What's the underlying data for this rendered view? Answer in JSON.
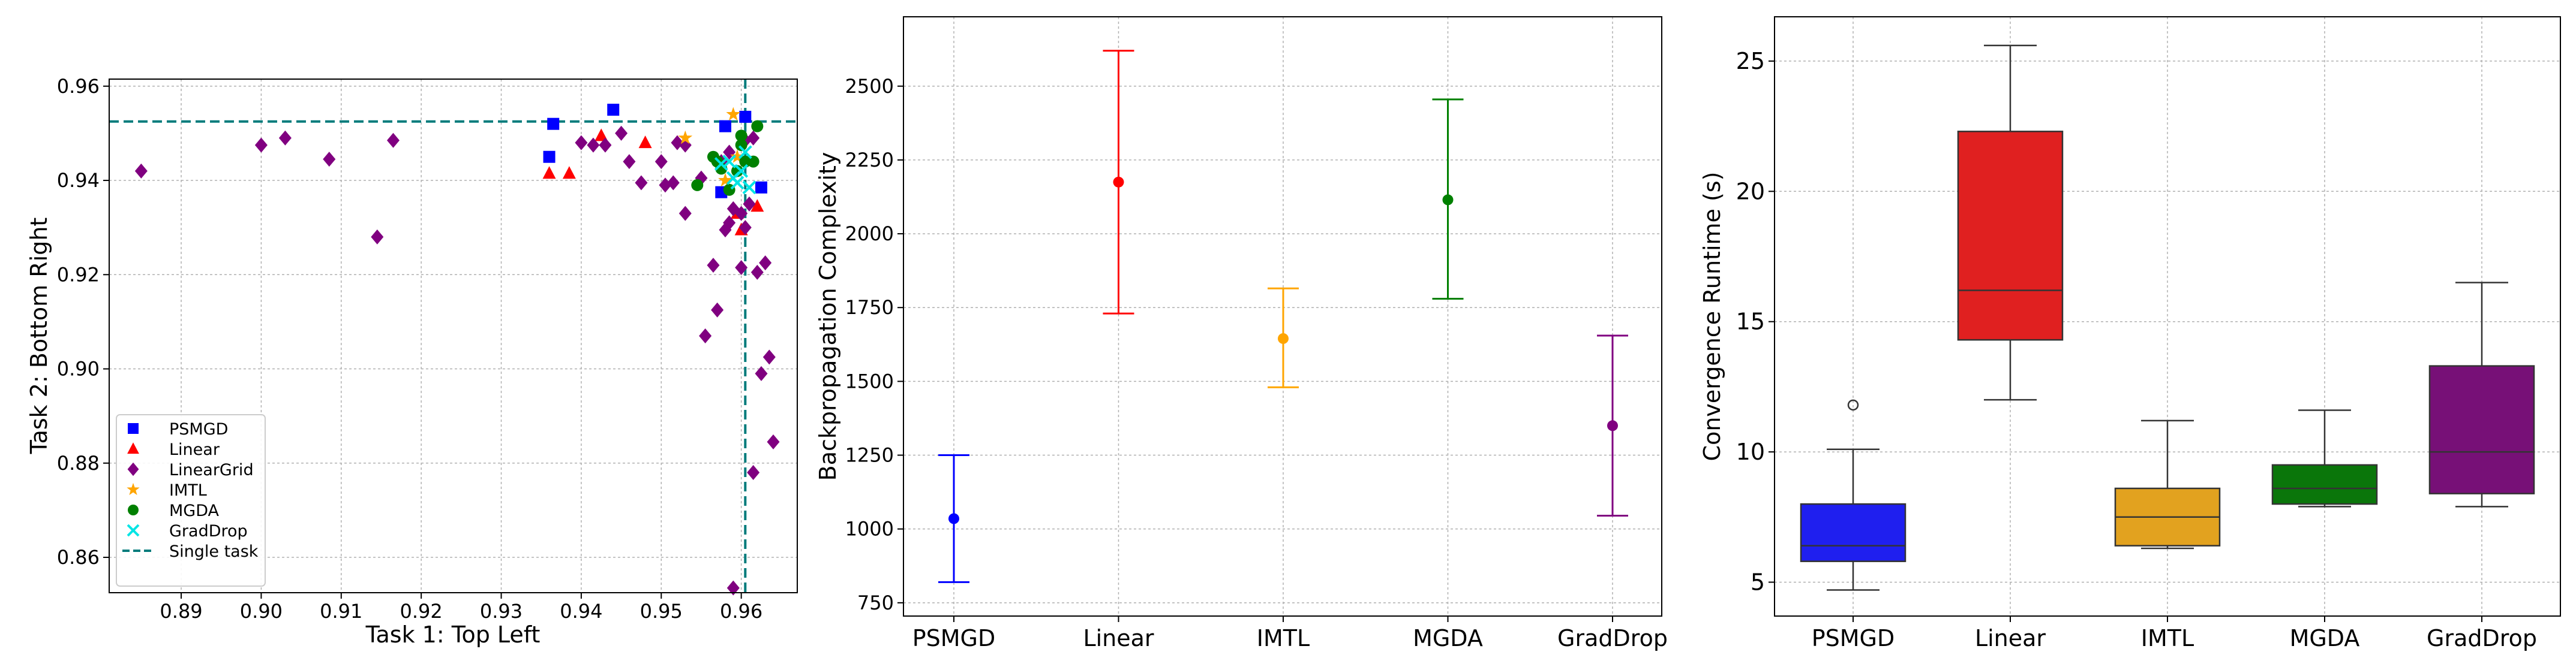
{
  "chart_data": [
    {
      "type": "scatter",
      "title": "",
      "xlabel": "Task 1: Top Left",
      "ylabel": "Task 2: Bottom Right",
      "xlim": [
        0.881,
        0.967
      ],
      "ylim": [
        0.8525,
        0.9615
      ],
      "xticks": [
        "0.89",
        "0.90",
        "0.91",
        "0.92",
        "0.93",
        "0.94",
        "0.95",
        "0.96"
      ],
      "yticks": [
        "0.86",
        "0.88",
        "0.90",
        "0.92",
        "0.94",
        "0.96"
      ],
      "grid": true,
      "legend_position": "lower-left",
      "reference_lines": {
        "single_task_x": 0.9605,
        "single_task_y": 0.9525
      },
      "series": [
        {
          "name": "PSMGD",
          "marker": "square",
          "color": "#0000ff",
          "points": [
            [
              0.9365,
              0.952
            ],
            [
              0.944,
              0.955
            ],
            [
              0.936,
              0.945
            ],
            [
              0.958,
              0.9515
            ],
            [
              0.9605,
              0.9535
            ],
            [
              0.9625,
              0.9385
            ],
            [
              0.9575,
              0.9375
            ]
          ]
        },
        {
          "name": "Linear",
          "marker": "triangle",
          "color": "#ff0000",
          "points": [
            [
              0.936,
              0.9415
            ],
            [
              0.9385,
              0.9415
            ],
            [
              0.9425,
              0.9495
            ],
            [
              0.948,
              0.948
            ],
            [
              0.962,
              0.9345
            ],
            [
              0.96,
              0.9295
            ],
            [
              0.9595,
              0.933
            ]
          ]
        },
        {
          "name": "LinearGrid",
          "marker": "diamond",
          "color": "#800080",
          "points": [
            [
              0.885,
              0.942
            ],
            [
              0.9,
              0.9475
            ],
            [
              0.903,
              0.949
            ],
            [
              0.9085,
              0.9445
            ],
            [
              0.9145,
              0.928
            ],
            [
              0.9165,
              0.9485
            ],
            [
              0.94,
              0.948
            ],
            [
              0.9415,
              0.9475
            ],
            [
              0.943,
              0.9475
            ],
            [
              0.945,
              0.95
            ],
            [
              0.946,
              0.944
            ],
            [
              0.9475,
              0.9395
            ],
            [
              0.95,
              0.944
            ],
            [
              0.9505,
              0.939
            ],
            [
              0.9515,
              0.9395
            ],
            [
              0.952,
              0.948
            ],
            [
              0.953,
              0.9475
            ],
            [
              0.953,
              0.933
            ],
            [
              0.955,
              0.9405
            ],
            [
              0.9555,
              0.907
            ],
            [
              0.9565,
              0.922
            ],
            [
              0.957,
              0.9125
            ],
            [
              0.9575,
              0.944
            ],
            [
              0.958,
              0.9295
            ],
            [
              0.9585,
              0.931
            ],
            [
              0.959,
              0.8535
            ],
            [
              0.959,
              0.934
            ],
            [
              0.96,
              0.933
            ],
            [
              0.9605,
              0.93
            ],
            [
              0.9605,
              0.9485
            ],
            [
              0.961,
              0.935
            ],
            [
              0.9615,
              0.949
            ],
            [
              0.962,
              0.9205
            ],
            [
              0.9615,
              0.878
            ],
            [
              0.9625,
              0.899
            ],
            [
              0.963,
              0.9225
            ],
            [
              0.9635,
              0.9025
            ],
            [
              0.964,
              0.8845
            ],
            [
              0.9585,
              0.946
            ],
            [
              0.96,
              0.9215
            ]
          ]
        },
        {
          "name": "IMTL",
          "marker": "star",
          "color": "#ffa500",
          "points": [
            [
              0.953,
              0.949
            ],
            [
              0.959,
              0.954
            ],
            [
              0.9595,
              0.945
            ],
            [
              0.958,
              0.94
            ]
          ]
        },
        {
          "name": "MGDA",
          "marker": "circle",
          "color": "#008000",
          "points": [
            [
              0.9545,
              0.939
            ],
            [
              0.9565,
              0.945
            ],
            [
              0.957,
              0.944
            ],
            [
              0.9585,
              0.938
            ],
            [
              0.9595,
              0.942
            ],
            [
              0.96,
              0.9475
            ],
            [
              0.9605,
              0.944
            ],
            [
              0.9615,
              0.944
            ],
            [
              0.962,
              0.9515
            ],
            [
              0.96,
              0.9495
            ],
            [
              0.9575,
              0.9425
            ]
          ]
        },
        {
          "name": "GradDrop",
          "marker": "x",
          "color": "#00e5e5",
          "points": [
            [
              0.9575,
              0.9435
            ],
            [
              0.959,
              0.9405
            ],
            [
              0.96,
              0.942
            ],
            [
              0.961,
              0.9385
            ],
            [
              0.9595,
              0.9395
            ],
            [
              0.9585,
              0.944
            ],
            [
              0.9605,
              0.946
            ]
          ]
        }
      ],
      "legend": [
        "PSMGD",
        "Linear",
        "LinearGrid",
        "IMTL",
        "MGDA",
        "GradDrop",
        "Single task"
      ]
    },
    {
      "type": "errorbar",
      "title": "",
      "xlabel": "",
      "ylabel": "Backpropagation Complexity",
      "ylim": [
        705,
        2735
      ],
      "yticks": [
        "750",
        "1000",
        "1250",
        "1500",
        "1750",
        "2000",
        "2250",
        "2500"
      ],
      "categories": [
        "PSMGD",
        "Linear",
        "IMTL",
        "MGDA",
        "GradDrop"
      ],
      "colors": [
        "#0000ff",
        "#ff0000",
        "#ffa500",
        "#008000",
        "#800080"
      ],
      "means": [
        1035,
        2175,
        1645,
        2115,
        1350
      ],
      "lower": [
        820,
        1730,
        1480,
        1780,
        1045
      ],
      "upper": [
        1250,
        2620,
        1815,
        2455,
        1655
      ],
      "grid": true
    },
    {
      "type": "box",
      "title": "",
      "xlabel": "",
      "ylabel": "Convergence Runtime (s)",
      "ylim": [
        3.7,
        26.7
      ],
      "yticks": [
        "5",
        "10",
        "15",
        "20",
        "25"
      ],
      "categories": [
        "PSMGD",
        "Linear",
        "IMTL",
        "MGDA",
        "GradDrop"
      ],
      "colors": [
        "#1f1fef",
        "#e02020",
        "#e2a21f",
        "#0a760a",
        "#771077"
      ],
      "boxes": [
        {
          "whislo": 4.7,
          "q1": 5.8,
          "med": 6.4,
          "q3": 8.0,
          "whishi": 10.1,
          "fliers": [
            11.8
          ]
        },
        {
          "whislo": 12.0,
          "q1": 14.3,
          "med": 16.2,
          "q3": 22.3,
          "whishi": 25.6,
          "fliers": []
        },
        {
          "whislo": 6.3,
          "q1": 6.4,
          "med": 7.5,
          "q3": 8.6,
          "whishi": 11.2,
          "fliers": []
        },
        {
          "whislo": 7.9,
          "q1": 8.0,
          "med": 8.6,
          "q3": 9.5,
          "whishi": 11.6,
          "fliers": []
        },
        {
          "whislo": 7.9,
          "q1": 8.4,
          "med": 10.0,
          "q3": 13.3,
          "whishi": 16.5,
          "fliers": []
        }
      ],
      "grid": true
    }
  ]
}
